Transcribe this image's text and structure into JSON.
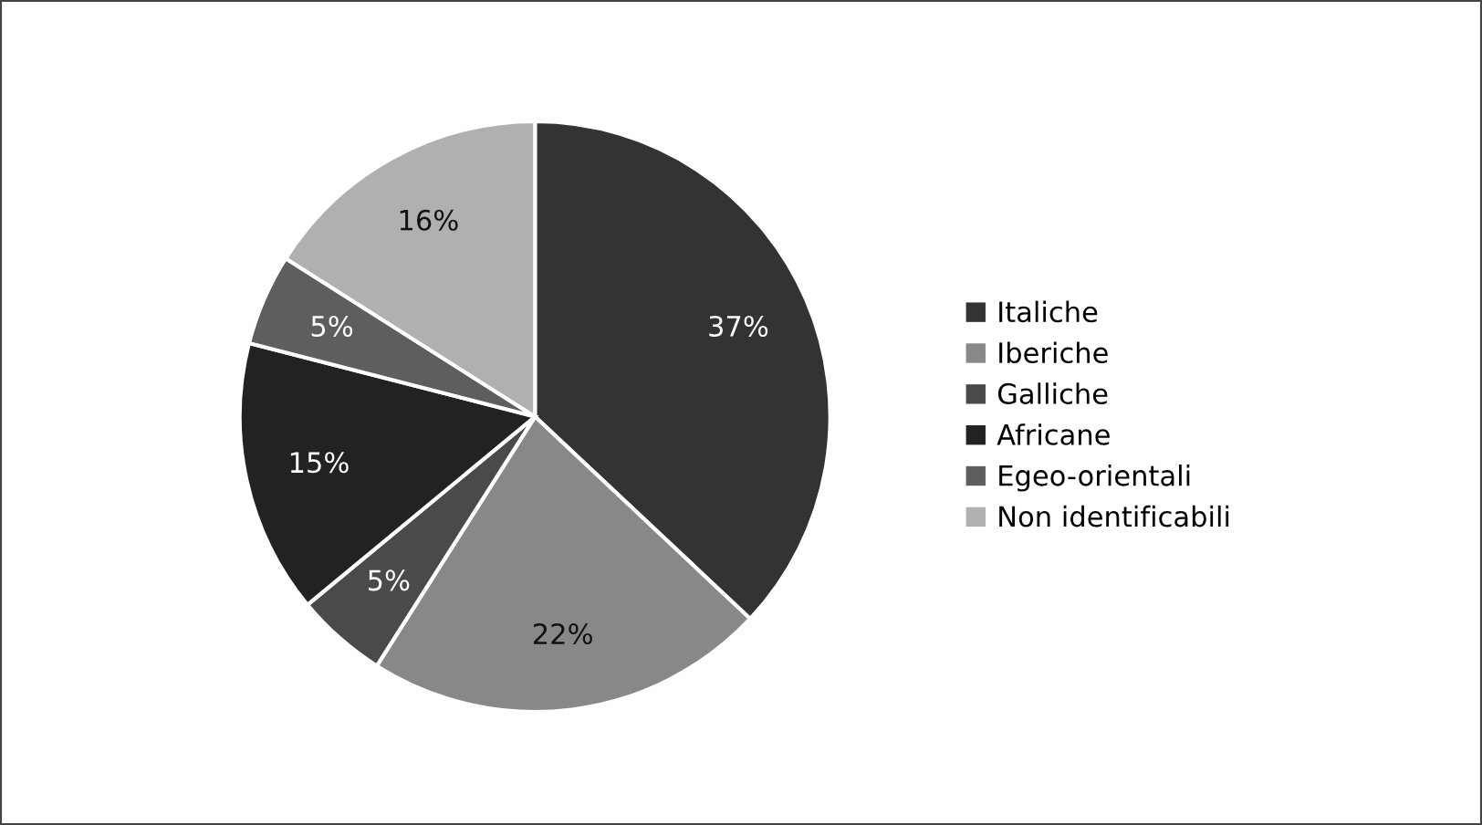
{
  "chart_data": {
    "type": "pie",
    "categories": [
      "Italiche",
      "Iberiche",
      "Galliche",
      "Africane",
      "Egeo-orientali",
      "Non identificabili"
    ],
    "values": [
      37,
      22,
      5,
      15,
      5,
      16
    ],
    "value_labels": [
      "37%",
      "22%",
      "5%",
      "15%",
      "5%",
      "16%"
    ],
    "colors": [
      "#333333",
      "#888888",
      "#4a4a4a",
      "#222222",
      "#5e5e5e",
      "#b0b0b0"
    ],
    "legend": "right"
  }
}
